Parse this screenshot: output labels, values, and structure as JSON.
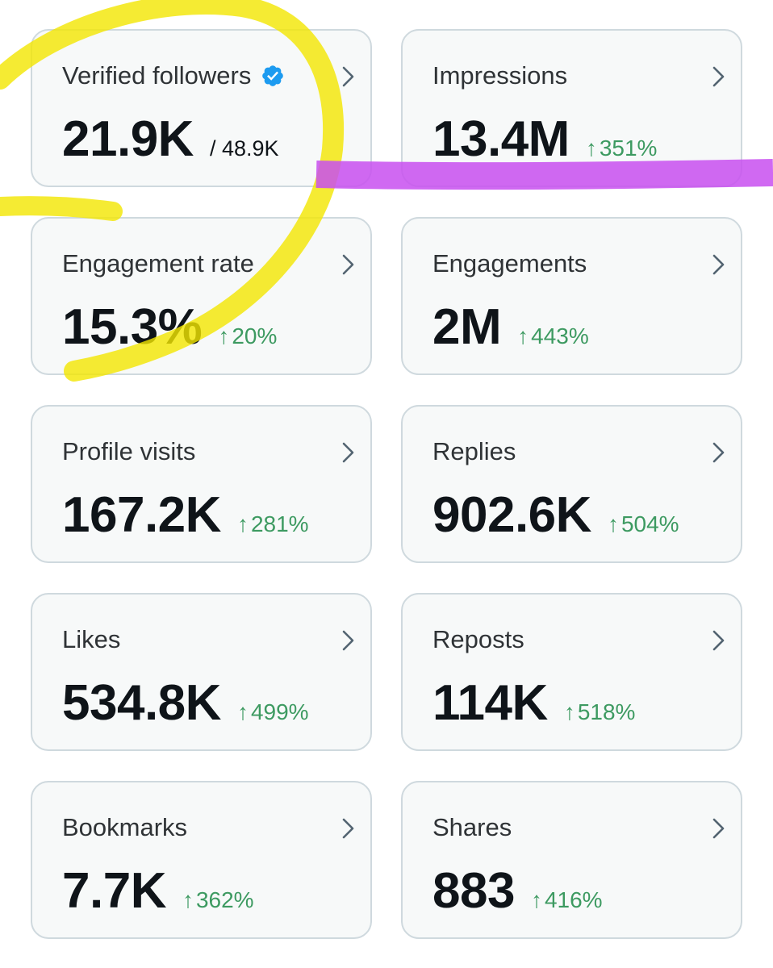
{
  "metrics": [
    {
      "label": "Verified followers",
      "value": "21.9K",
      "total": "/ 48.9K",
      "change": "",
      "verified_badge": true
    },
    {
      "label": "Impressions",
      "value": "13.4M",
      "total": "",
      "change": "351%"
    },
    {
      "label": "Engagement rate",
      "value": "15.3%",
      "total": "",
      "change": "20%"
    },
    {
      "label": "Engagements",
      "value": "2M",
      "total": "",
      "change": "443%"
    },
    {
      "label": "Profile visits",
      "value": "167.2K",
      "total": "",
      "change": "281%"
    },
    {
      "label": "Replies",
      "value": "902.6K",
      "total": "",
      "change": "504%"
    },
    {
      "label": "Likes",
      "value": "534.8K",
      "total": "",
      "change": "499%"
    },
    {
      "label": "Reposts",
      "value": "114K",
      "total": "",
      "change": "518%"
    },
    {
      "label": "Bookmarks",
      "value": "7.7K",
      "total": "",
      "change": "362%"
    },
    {
      "label": "Shares",
      "value": "883",
      "total": "",
      "change": "416%"
    }
  ],
  "icons": {
    "verified": "verified-badge-icon",
    "chevron": "chevron-right-icon",
    "change": "arrow-up-icon"
  },
  "colors": {
    "card_background": "#f7f9f9",
    "card_border": "#cfd9de",
    "positive_change": "#3d9a61",
    "verified_blue": "#1d9bf0",
    "highlighter_yellow": "#f2e600",
    "highlighter_purple": "#c84ff0"
  }
}
